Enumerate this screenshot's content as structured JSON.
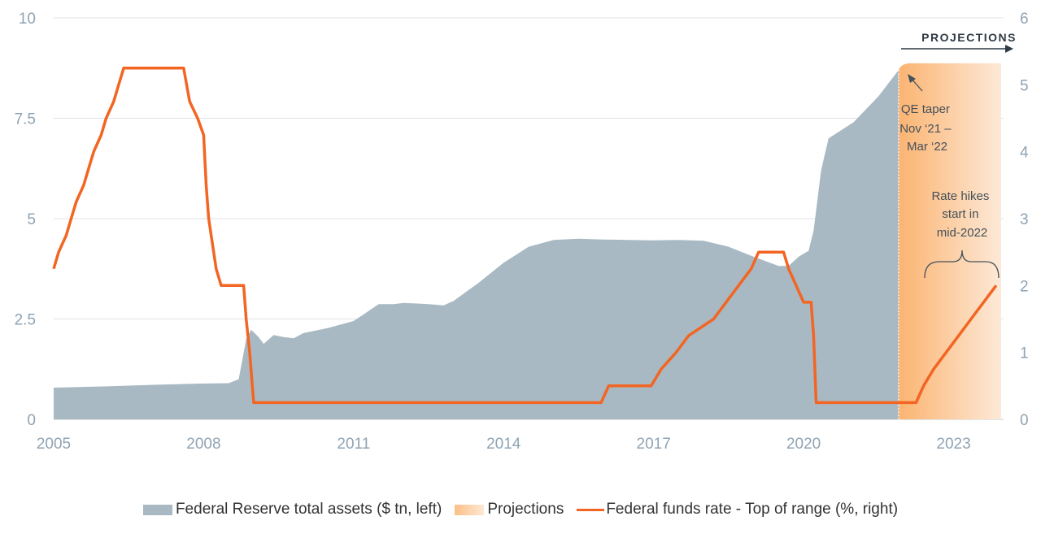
{
  "chart_data": {
    "type": "area+line",
    "x_ticks": [
      2005,
      2008,
      2011,
      2014,
      2017,
      2020,
      2023
    ],
    "y_left": {
      "ticks": [
        "0",
        "2.5",
        "5",
        "7.5",
        "10"
      ],
      "tick_values": [
        0,
        2.5,
        5,
        7.5,
        10
      ],
      "range": [
        0,
        10
      ]
    },
    "y_right": {
      "ticks": [
        "0",
        "1",
        "2",
        "3",
        "4",
        "5",
        "6"
      ],
      "tick_values": [
        0,
        1,
        2,
        3,
        4,
        5,
        6
      ],
      "range": [
        0,
        6
      ]
    },
    "x_range": [
      2005,
      2024
    ],
    "projection_start": 2021.9,
    "projection_end": 2023.95,
    "projection_label": "PROJECTIONS",
    "series": [
      {
        "name": "Federal Reserve total assets ($ tn, left)",
        "type": "area",
        "axis": "left",
        "color": "#a9b9c3",
        "points": [
          [
            2005.0,
            0.79
          ],
          [
            2006.0,
            0.82
          ],
          [
            2007.0,
            0.86
          ],
          [
            2007.9,
            0.89
          ],
          [
            2008.5,
            0.9
          ],
          [
            2008.7,
            1.0
          ],
          [
            2008.85,
            2.0
          ],
          [
            2008.95,
            2.23
          ],
          [
            2009.1,
            2.05
          ],
          [
            2009.2,
            1.88
          ],
          [
            2009.4,
            2.1
          ],
          [
            2009.6,
            2.05
          ],
          [
            2009.8,
            2.02
          ],
          [
            2010.0,
            2.15
          ],
          [
            2010.5,
            2.28
          ],
          [
            2011.0,
            2.45
          ],
          [
            2011.3,
            2.7
          ],
          [
            2011.5,
            2.87
          ],
          [
            2011.8,
            2.87
          ],
          [
            2012.0,
            2.9
          ],
          [
            2012.5,
            2.87
          ],
          [
            2012.8,
            2.84
          ],
          [
            2013.0,
            2.95
          ],
          [
            2013.5,
            3.4
          ],
          [
            2014.0,
            3.9
          ],
          [
            2014.5,
            4.3
          ],
          [
            2015.0,
            4.47
          ],
          [
            2015.5,
            4.5
          ],
          [
            2016.0,
            4.48
          ],
          [
            2016.5,
            4.47
          ],
          [
            2017.0,
            4.46
          ],
          [
            2017.5,
            4.47
          ],
          [
            2018.0,
            4.45
          ],
          [
            2018.5,
            4.3
          ],
          [
            2019.0,
            4.05
          ],
          [
            2019.5,
            3.82
          ],
          [
            2019.7,
            3.82
          ],
          [
            2019.9,
            4.05
          ],
          [
            2020.1,
            4.2
          ],
          [
            2020.2,
            4.7
          ],
          [
            2020.35,
            6.2
          ],
          [
            2020.5,
            7.0
          ],
          [
            2021.0,
            7.4
          ],
          [
            2021.5,
            8.05
          ],
          [
            2021.9,
            8.7
          ]
        ]
      },
      {
        "name": "Projections",
        "type": "area",
        "axis": "left",
        "color": "#fbbf86",
        "points": [
          [
            2021.9,
            8.7
          ],
          [
            2022.15,
            8.87
          ],
          [
            2023.95,
            8.87
          ]
        ]
      },
      {
        "name": "Federal funds rate - Top of range (%, right)",
        "type": "line",
        "axis": "right",
        "color": "#f26522",
        "points": [
          [
            2005.0,
            2.25
          ],
          [
            2005.1,
            2.5
          ],
          [
            2005.25,
            2.75
          ],
          [
            2005.35,
            3.0
          ],
          [
            2005.45,
            3.25
          ],
          [
            2005.6,
            3.5
          ],
          [
            2005.7,
            3.75
          ],
          [
            2005.8,
            4.0
          ],
          [
            2005.95,
            4.25
          ],
          [
            2006.05,
            4.5
          ],
          [
            2006.2,
            4.75
          ],
          [
            2006.3,
            5.0
          ],
          [
            2006.4,
            5.25
          ],
          [
            2007.6,
            5.25
          ],
          [
            2007.72,
            4.75
          ],
          [
            2007.88,
            4.5
          ],
          [
            2008.0,
            4.25
          ],
          [
            2008.05,
            3.5
          ],
          [
            2008.1,
            3.0
          ],
          [
            2008.25,
            2.25
          ],
          [
            2008.35,
            2.0
          ],
          [
            2008.8,
            2.0
          ],
          [
            2008.85,
            1.5
          ],
          [
            2008.92,
            1.0
          ],
          [
            2009.0,
            0.25
          ],
          [
            2015.95,
            0.25
          ],
          [
            2016.1,
            0.5
          ],
          [
            2016.95,
            0.5
          ],
          [
            2017.15,
            0.75
          ],
          [
            2017.45,
            1.0
          ],
          [
            2017.7,
            1.25
          ],
          [
            2018.2,
            1.5
          ],
          [
            2018.45,
            1.75
          ],
          [
            2018.7,
            2.0
          ],
          [
            2018.95,
            2.25
          ],
          [
            2019.1,
            2.5
          ],
          [
            2019.6,
            2.5
          ],
          [
            2019.7,
            2.25
          ],
          [
            2019.85,
            2.0
          ],
          [
            2020.0,
            1.75
          ],
          [
            2020.15,
            1.75
          ],
          [
            2020.2,
            1.25
          ],
          [
            2020.25,
            0.25
          ],
          [
            2022.25,
            0.25
          ],
          [
            2022.4,
            0.5
          ],
          [
            2022.6,
            0.75
          ],
          [
            2022.85,
            1.0
          ],
          [
            2023.1,
            1.25
          ],
          [
            2023.35,
            1.5
          ],
          [
            2023.6,
            1.75
          ],
          [
            2023.85,
            2.0
          ]
        ]
      }
    ],
    "annotations": [
      {
        "id": "qe",
        "lines": [
          "QE taper",
          "Nov ‘21 –",
          "Mar ‘22"
        ]
      },
      {
        "id": "hikes",
        "lines": [
          "Rate hikes",
          "start in",
          "mid-2022"
        ]
      }
    ]
  },
  "legend": [
    {
      "label": "Federal Reserve total assets ($ tn, left)"
    },
    {
      "label": "Projections"
    },
    {
      "label": "Federal funds rate - Top of range (%, right)"
    }
  ]
}
